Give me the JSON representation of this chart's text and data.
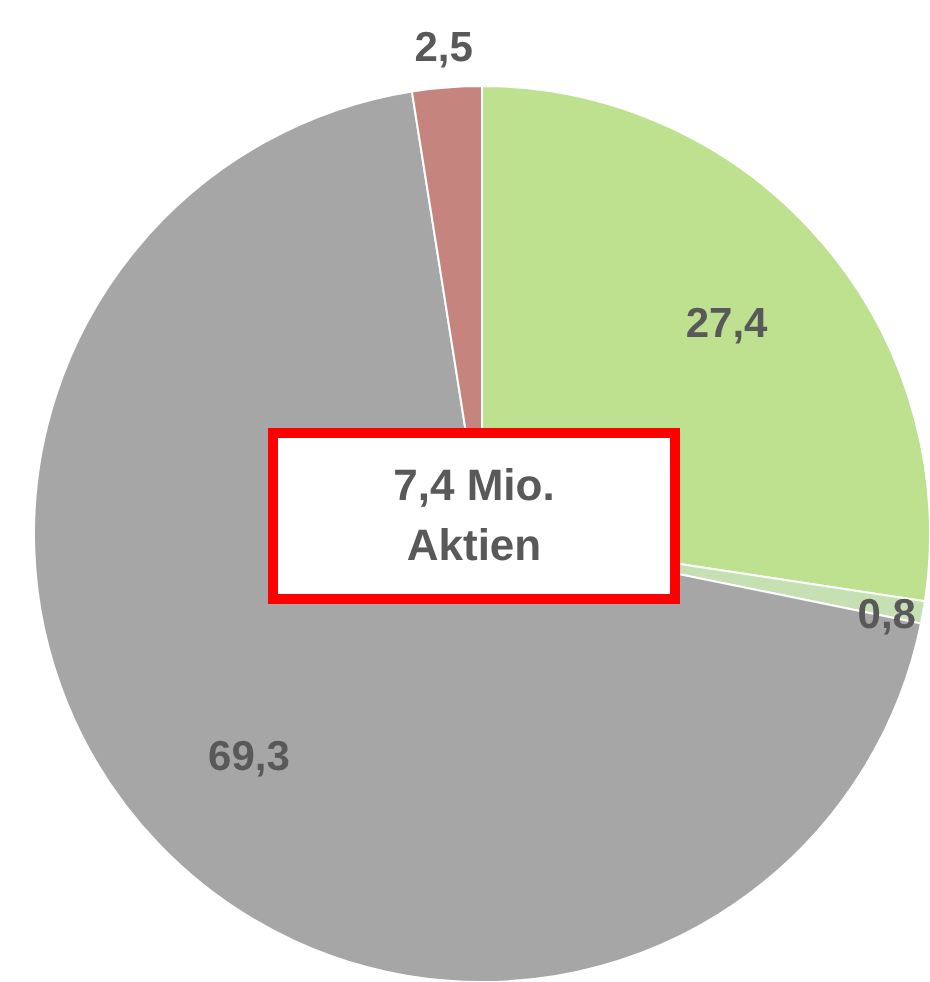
{
  "chart_data": {
    "type": "pie",
    "categories": [
      null,
      null,
      null,
      null
    ],
    "values": [
      27.4,
      0.8,
      69.3,
      2.5
    ],
    "colors": [
      "#bde18f",
      "#c6e0b4",
      "#a6a6a6",
      "#c5847d"
    ],
    "value_labels": [
      "27,4",
      "0,8",
      "69,3",
      "2,5"
    ],
    "annotations": [
      "7,4 Mio. Aktien"
    ],
    "legend": false
  }
}
